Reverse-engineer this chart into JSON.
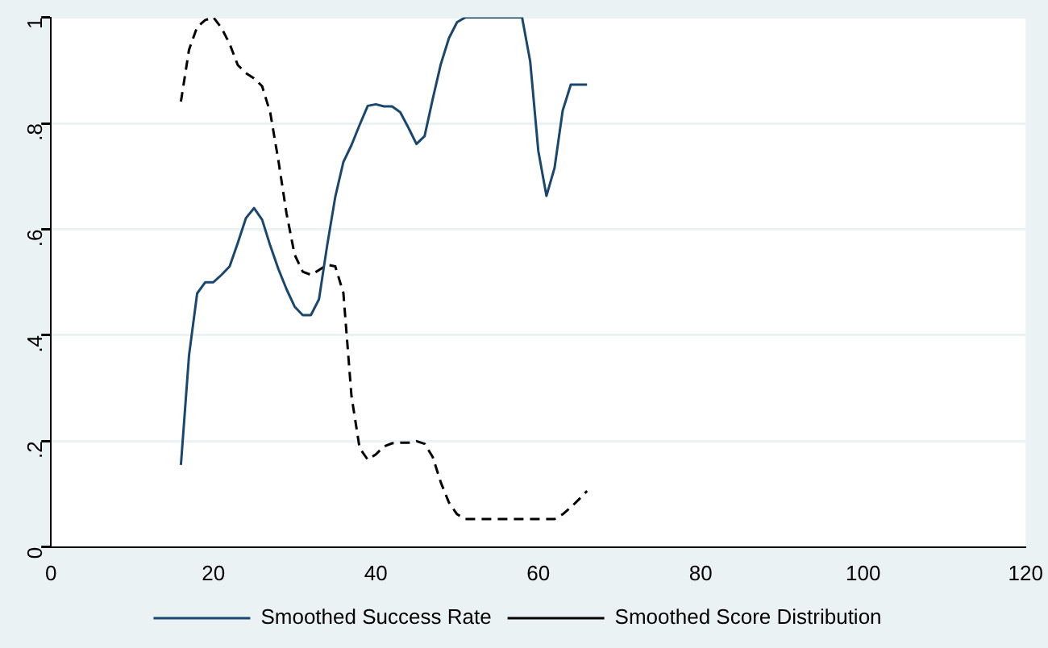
{
  "chart_data": {
    "type": "line",
    "x": [
      16,
      17,
      18,
      19,
      20,
      21,
      22,
      23,
      24,
      25,
      26,
      27,
      28,
      29,
      30,
      31,
      32,
      33,
      34,
      35,
      36,
      37,
      38,
      39,
      40,
      41,
      42,
      43,
      44,
      45,
      46,
      47,
      48,
      49,
      50,
      51,
      52,
      53,
      54,
      55,
      56,
      57,
      58,
      59,
      60,
      61,
      62,
      63,
      64,
      65,
      66
    ],
    "series": [
      {
        "name": "Smoothed Success Rate",
        "color": "#1a476f",
        "line_style": "solid",
        "values": [
          0.155,
          0.362,
          0.479,
          0.5,
          0.5,
          0.514,
          0.53,
          0.574,
          0.621,
          0.64,
          0.618,
          0.569,
          0.525,
          0.487,
          0.454,
          0.438,
          0.438,
          0.468,
          0.569,
          0.661,
          0.727,
          0.759,
          0.797,
          0.833,
          0.836,
          0.832,
          0.832,
          0.821,
          0.792,
          0.761,
          0.776,
          0.846,
          0.912,
          0.961,
          0.991,
          1,
          1,
          1,
          1,
          1,
          1,
          1,
          1,
          0.917,
          0.748,
          0.663,
          0.716,
          0.824,
          0.873,
          0.873,
          0.873
        ]
      },
      {
        "name": "Smoothed Score Distribution",
        "color": "#000000",
        "line_style": "dashed",
        "values": [
          0.841,
          0.939,
          0.982,
          0.995,
          1,
          0.98,
          0.95,
          0.91,
          0.895,
          0.885,
          0.87,
          0.82,
          0.73,
          0.63,
          0.552,
          0.52,
          0.514,
          0.523,
          0.533,
          0.53,
          0.48,
          0.285,
          0.187,
          0.165,
          0.175,
          0.19,
          0.196,
          0.197,
          0.197,
          0.2,
          0.195,
          0.17,
          0.122,
          0.084,
          0.062,
          0.053,
          0.053,
          0.053,
          0.053,
          0.053,
          0.053,
          0.053,
          0.053,
          0.053,
          0.053,
          0.053,
          0.053,
          0.062,
          0.075,
          0.09,
          0.106
        ]
      }
    ],
    "xlim": [
      0,
      120
    ],
    "xticks": [
      0,
      20,
      40,
      60,
      80,
      100,
      120
    ],
    "ylim": [
      0,
      1
    ],
    "yticks": [
      {
        "value": 0,
        "label": "0"
      },
      {
        "value": 0.2,
        "label": ".2"
      },
      {
        "value": 0.4,
        "label": ".4"
      },
      {
        "value": 0.6,
        "label": ".6"
      },
      {
        "value": 0.8,
        "label": ".8"
      },
      {
        "value": 1,
        "label": "1"
      }
    ],
    "grid": "y",
    "legend": "bottom",
    "marker": "none"
  }
}
